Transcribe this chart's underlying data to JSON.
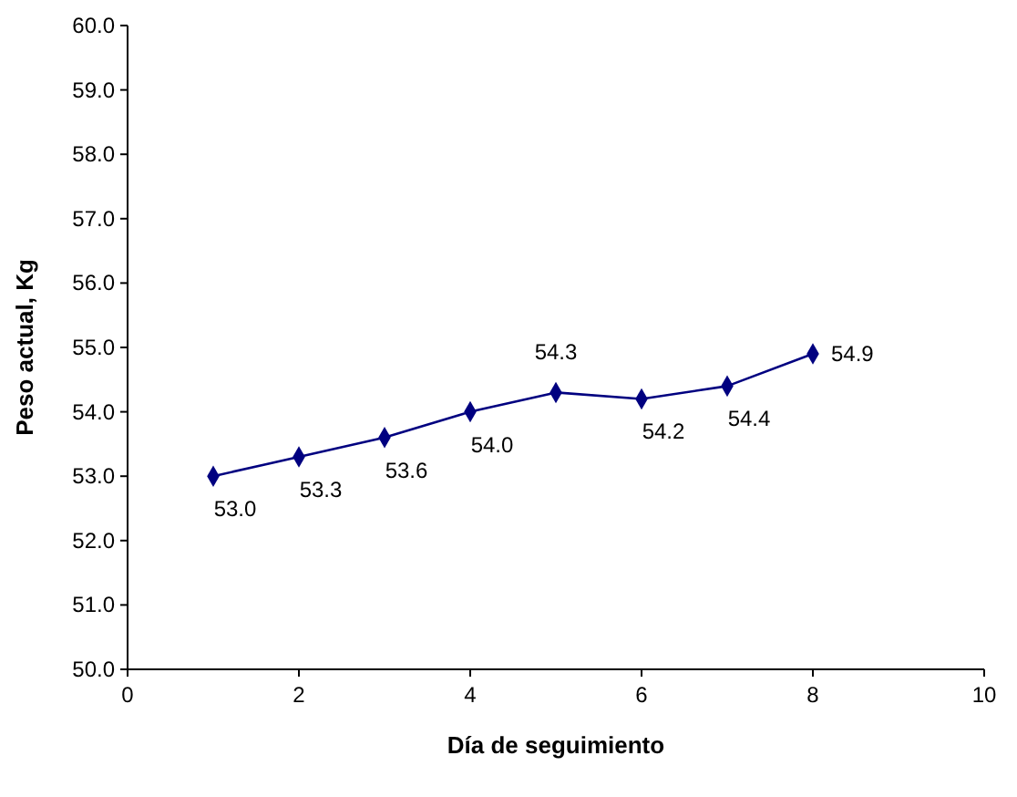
{
  "chart_data": {
    "type": "line",
    "xlabel": "Día de seguimiento",
    "ylabel": "Peso actual, Kg",
    "x": [
      1,
      2,
      3,
      4,
      5,
      6,
      7,
      8
    ],
    "series": [
      {
        "color": "#000080",
        "values": [
          53.0,
          53.3,
          53.6,
          54.0,
          54.3,
          54.2,
          54.4,
          54.9
        ],
        "value_labels": [
          "53.0",
          "53.3",
          "53.6",
          "54.0",
          "54.3",
          "54.2",
          "54.4",
          "54.9"
        ]
      }
    ],
    "xlim": [
      0,
      10
    ],
    "xticks": [
      0,
      2,
      4,
      6,
      8,
      10
    ],
    "ylim": [
      50,
      60
    ],
    "yticks": [
      {
        "value": 50,
        "label": "50.0"
      },
      {
        "value": 51,
        "label": "51.0"
      },
      {
        "value": 52,
        "label": "52.0"
      },
      {
        "value": 53,
        "label": "53.0"
      },
      {
        "value": 54,
        "label": "54.0"
      },
      {
        "value": 55,
        "label": "55.0"
      },
      {
        "value": 56,
        "label": "56.0"
      },
      {
        "value": 57,
        "label": "57.0"
      },
      {
        "value": 58,
        "label": "58.0"
      },
      {
        "value": 59,
        "label": "59.0"
      },
      {
        "value": 60,
        "label": "60.0"
      }
    ],
    "marker": "diamond",
    "grid": false
  }
}
